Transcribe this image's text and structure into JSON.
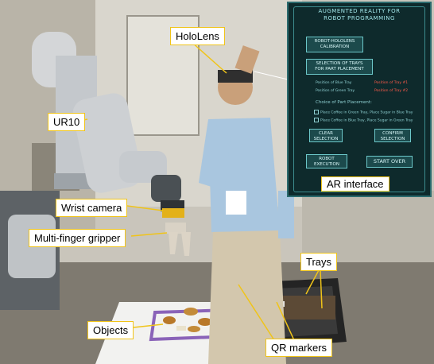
{
  "labels": {
    "hololens": "HoloLens",
    "ur10": "UR10",
    "wrist_camera": "Wrist camera",
    "gripper": "Multi-finger gripper",
    "objects": "Objects",
    "trays": "Trays",
    "qr_markers": "QR markers",
    "ar_interface": "AR interface"
  },
  "ar_panel": {
    "title_line1": "AUGMENTED REALITY FOR",
    "title_line2": "ROBOT PROGRAMMING",
    "calibration_line1": "ROBOT-HOLOLENS",
    "calibration_line2": "CALIBRATION",
    "trays_line1": "SELECTION OF TRAYS",
    "trays_line2": "FOR PART PLACEMENT",
    "blue_tray": "Position of Blue Tray",
    "green_tray": "Position of Green Tray",
    "pos_tray1": "Position of Tray #1",
    "pos_tray2": "Position of Tray #2",
    "choice": "Choice of Part Placement:",
    "option1": "Place Coffee in Green Tray, Place Sugar in Blue Tray",
    "option2": "Place Coffee in Blue Tray, Place Sugar in Green Tray",
    "clear_line1": "CLEAR",
    "clear_line2": "SELECTION",
    "confirm_line1": "CONFIRM",
    "confirm_line2": "SELECTION",
    "exec_line1": "ROBOT",
    "exec_line2": "EXECUTION",
    "start_over": "START OVER"
  },
  "colors": {
    "callout_border": "#f0c419",
    "panel_bg": "#0e2a2c",
    "panel_accent": "#6cc7c9"
  }
}
